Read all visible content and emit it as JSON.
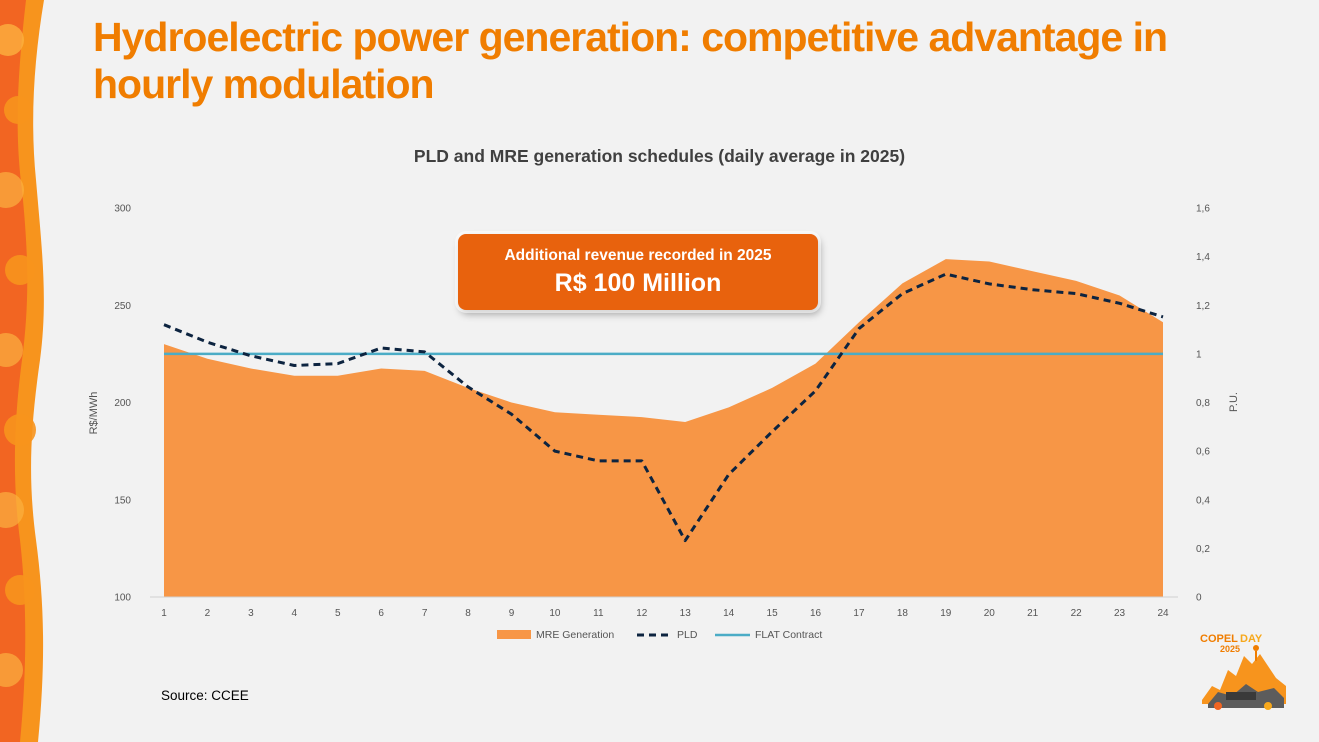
{
  "slide": {
    "title": "Hydroelectric power generation: competitive advantage in hourly modulation",
    "source": "Source: CCEE"
  },
  "callout": {
    "line1": "Additional revenue recorded in 2025",
    "line2": "R$ 100 Million"
  },
  "logo": {
    "brand": "COPEL",
    "event": "DAY",
    "year": "2025"
  },
  "colors": {
    "title": "#f07d00",
    "mre_fill": "#f79646",
    "pld_line": "#0d2440",
    "flat_line": "#4bacc6",
    "callout_bg": "#e8620d"
  },
  "chart_data": {
    "type": "area",
    "title": "PLD and MRE generation schedules (daily average in 2025)",
    "xlabel": "",
    "ylabel_left": "R$/MWh",
    "ylabel_right": "P.U.",
    "categories": [
      "1",
      "2",
      "3",
      "4",
      "5",
      "6",
      "7",
      "8",
      "9",
      "10",
      "11",
      "12",
      "13",
      "14",
      "15",
      "16",
      "17",
      "18",
      "19",
      "20",
      "21",
      "22",
      "23",
      "24"
    ],
    "ylim_left": [
      100,
      300
    ],
    "ylim_right": [
      0,
      1.6
    ],
    "yticks_left": [
      "300",
      "250",
      "200",
      "150",
      "100"
    ],
    "yticks_right": [
      "1,6",
      "1,4",
      "1,2",
      "1",
      "0,8",
      "0,6",
      "0,4",
      "0,2",
      "0"
    ],
    "grid": false,
    "legend_position": "bottom",
    "series": [
      {
        "name": "MRE Generation",
        "type": "area",
        "axis": "right",
        "values": [
          1.04,
          0.98,
          0.94,
          0.91,
          0.91,
          0.94,
          0.93,
          0.86,
          0.8,
          0.76,
          0.75,
          0.74,
          0.72,
          0.78,
          0.86,
          0.96,
          1.13,
          1.29,
          1.39,
          1.38,
          1.34,
          1.3,
          1.24,
          1.13
        ]
      },
      {
        "name": "PLD",
        "type": "line",
        "dash": true,
        "axis": "left",
        "values": [
          240,
          231,
          224,
          219,
          220,
          228,
          226,
          208,
          194,
          175,
          170,
          170,
          129,
          163,
          185,
          206,
          238,
          256,
          266,
          261,
          258,
          256,
          251,
          244
        ]
      },
      {
        "name": "FLAT Contract",
        "type": "line",
        "axis": "right",
        "values": [
          1,
          1,
          1,
          1,
          1,
          1,
          1,
          1,
          1,
          1,
          1,
          1,
          1,
          1,
          1,
          1,
          1,
          1,
          1,
          1,
          1,
          1,
          1,
          1
        ]
      }
    ]
  }
}
